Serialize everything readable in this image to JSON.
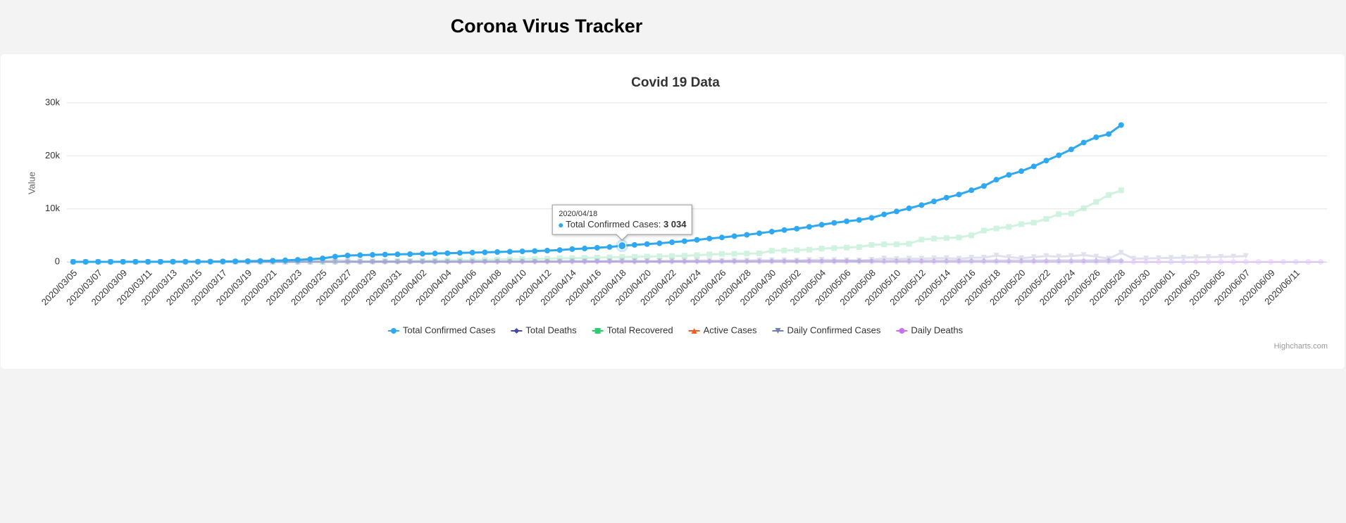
{
  "header": {
    "title": "Corona Virus Tracker"
  },
  "chart_data": {
    "type": "line",
    "title": "Covid 19 Data",
    "y_label": "Value",
    "credits": "Highcharts.com",
    "x": [
      "2020/03/05",
      null,
      "2020/03/07",
      null,
      "2020/03/09",
      null,
      "2020/03/11",
      null,
      "2020/03/13",
      null,
      "2020/03/15",
      null,
      "2020/03/17",
      null,
      "2020/03/19",
      null,
      "2020/03/21",
      null,
      "2020/03/23",
      null,
      "2020/03/25",
      null,
      "2020/03/27",
      null,
      "2020/03/29",
      null,
      "2020/03/31",
      null,
      "2020/04/02",
      null,
      "2020/04/04",
      null,
      "2020/04/06",
      null,
      "2020/04/08",
      null,
      "2020/04/10",
      null,
      "2020/04/12",
      null,
      "2020/04/14",
      null,
      "2020/04/16",
      null,
      "2020/04/18",
      null,
      "2020/04/20",
      null,
      "2020/04/22",
      null,
      "2020/04/24",
      null,
      "2020/04/26",
      null,
      "2020/04/28",
      null,
      "2020/04/30",
      null,
      "2020/05/02",
      null,
      "2020/05/04",
      null,
      "2020/05/06",
      null,
      "2020/05/08",
      null,
      "2020/05/10",
      null,
      "2020/05/12",
      null,
      "2020/05/14",
      null,
      "2020/05/16",
      null,
      "2020/05/18",
      null,
      "2020/05/20",
      null,
      "2020/05/22",
      null,
      "2020/05/24",
      null,
      "2020/05/26",
      null,
      "2020/05/28",
      null,
      "2020/05/30",
      null,
      "2020/06/01",
      null,
      "2020/06/03",
      null,
      "2020/06/05",
      null,
      "2020/06/07",
      null,
      "2020/06/09",
      null,
      "2020/06/11",
      null,
      null
    ],
    "ylim": [
      0,
      30000
    ],
    "yticks": [
      0,
      {
        "value": 10000,
        "label": "10k"
      },
      {
        "value": 20000,
        "label": "20k"
      },
      {
        "value": 30000,
        "label": "30k"
      }
    ],
    "grid": true,
    "legend": "bottom",
    "series": [
      {
        "name": "Total Confirmed Cases",
        "color": "#2ea8f0",
        "marker": "circle",
        "values": [
          2,
          3,
          5,
          8,
          10,
          12,
          15,
          20,
          25,
          30,
          40,
          55,
          75,
          100,
          130,
          170,
          220,
          290,
          380,
          500,
          650,
          1000,
          1200,
          1260,
          1320,
          1380,
          1420,
          1460,
          1520,
          1580,
          1630,
          1690,
          1750,
          1800,
          1860,
          1920,
          1980,
          2040,
          2120,
          2230,
          2400,
          2520,
          2650,
          2800,
          3034,
          3200,
          3350,
          3500,
          3700,
          3900,
          4150,
          4400,
          4600,
          4850,
          5100,
          5400,
          5700,
          6000,
          6250,
          6600,
          7000,
          7350,
          7650,
          7900,
          8300,
          8950,
          9500,
          10100,
          10700,
          11400,
          12100,
          12700,
          13500,
          14300,
          15500,
          16400,
          17100,
          18000,
          19100,
          20100,
          21200,
          22500,
          23500,
          24100,
          25800,
          null,
          null,
          null,
          null,
          null,
          null,
          null,
          null,
          null,
          null,
          null,
          null,
          null,
          null,
          null,
          null
        ]
      },
      {
        "name": "Total Deaths",
        "color": "#434aa8",
        "marker": "diamond",
        "values": [
          0,
          0,
          0,
          0,
          0,
          0,
          0,
          0,
          0,
          0,
          0,
          1,
          1,
          2,
          3,
          4,
          5,
          7,
          9,
          11,
          13,
          15,
          18,
          20,
          23,
          25,
          28,
          30,
          33,
          35,
          38,
          40,
          43,
          46,
          49,
          52,
          55,
          58,
          62,
          66,
          70,
          74,
          78,
          82,
          86,
          90,
          95,
          100,
          105,
          110,
          115,
          120,
          125,
          130,
          135,
          140,
          145,
          150,
          155,
          160,
          165,
          170,
          175,
          180,
          185,
          190,
          195,
          200,
          205,
          210,
          215,
          220,
          225,
          230,
          235,
          240,
          245,
          250,
          255,
          260,
          265,
          270,
          275,
          280,
          285,
          null,
          null,
          null,
          null,
          null,
          null,
          null,
          null,
          null,
          null,
          null,
          null,
          null,
          null,
          null,
          null
        ]
      },
      {
        "name": "Total Recovered",
        "color": "#2ecc71",
        "marker": "square",
        "values": [
          0,
          0,
          0,
          0,
          0,
          0,
          0,
          0,
          0,
          0,
          0,
          0,
          0,
          0,
          0,
          0,
          0,
          0,
          0,
          0,
          10,
          20,
          40,
          60,
          80,
          100,
          130,
          160,
          200,
          240,
          280,
          320,
          360,
          400,
          440,
          480,
          520,
          560,
          600,
          650,
          700,
          750,
          800,
          850,
          900,
          950,
          1000,
          1050,
          1100,
          1150,
          1250,
          1400,
          1500,
          1500,
          1550,
          1600,
          2100,
          2150,
          2200,
          2300,
          2500,
          2600,
          2700,
          2800,
          3200,
          3300,
          3300,
          3400,
          4200,
          4400,
          4500,
          4600,
          5000,
          5900,
          6300,
          6600,
          7100,
          7400,
          8100,
          9000,
          9100,
          10100,
          11300,
          12600,
          13500,
          null,
          null,
          null,
          null,
          null,
          null,
          null,
          null,
          null,
          null,
          null,
          null,
          null,
          null,
          null,
          null
        ]
      },
      {
        "name": "Active Cases",
        "color": "#f15c22",
        "marker": "triangle",
        "values": [
          null,
          null,
          null,
          null,
          null,
          null,
          null,
          null,
          null,
          null,
          null,
          null,
          null,
          null,
          null,
          null,
          null,
          null,
          null,
          null,
          null,
          null,
          null,
          null,
          null,
          null,
          null,
          null,
          null,
          null,
          null,
          null,
          null,
          null,
          null,
          null,
          null,
          null,
          null,
          null,
          null,
          null,
          null,
          null,
          null,
          null,
          null,
          null,
          null,
          null,
          null,
          null,
          null,
          null,
          null,
          null,
          null,
          null,
          null,
          null,
          null,
          null,
          null,
          null,
          null,
          null,
          null,
          null,
          null,
          null,
          null,
          null,
          null,
          null,
          null,
          null,
          null,
          null,
          null,
          null,
          null,
          null,
          null,
          null,
          null,
          null,
          null,
          null,
          null,
          null,
          null,
          null,
          null,
          null,
          null,
          null,
          null,
          null,
          null,
          null,
          null
        ]
      },
      {
        "name": "Daily Confirmed Cases",
        "color": "#7080b0",
        "marker": "triangle-down",
        "values": [
          1,
          1,
          2,
          3,
          2,
          2,
          3,
          5,
          5,
          5,
          10,
          15,
          20,
          25,
          30,
          40,
          50,
          70,
          90,
          120,
          150,
          350,
          200,
          60,
          60,
          60,
          40,
          40,
          60,
          60,
          50,
          60,
          60,
          50,
          60,
          60,
          60,
          60,
          80,
          110,
          170,
          120,
          130,
          150,
          234,
          166,
          150,
          150,
          200,
          200,
          250,
          250,
          200,
          250,
          250,
          300,
          300,
          300,
          250,
          350,
          400,
          350,
          300,
          250,
          400,
          650,
          550,
          600,
          600,
          700,
          700,
          600,
          800,
          800,
          1200,
          900,
          700,
          900,
          1100,
          1000,
          1100,
          1300,
          1000,
          600,
          1700,
          600,
          650,
          700,
          750,
          800,
          850,
          900,
          950,
          1000,
          1100,
          null,
          null,
          null,
          null,
          null,
          null
        ]
      },
      {
        "name": "Daily Deaths",
        "color": "#c970f0",
        "marker": "circle",
        "values": [
          0,
          0,
          0,
          0,
          0,
          0,
          0,
          0,
          0,
          0,
          0,
          0,
          1,
          0,
          1,
          1,
          1,
          2,
          2,
          2,
          2,
          2,
          3,
          2,
          3,
          2,
          3,
          2,
          3,
          2,
          3,
          3,
          3,
          3,
          3,
          3,
          3,
          4,
          4,
          4,
          4,
          4,
          4,
          4,
          4,
          4,
          5,
          5,
          5,
          5,
          5,
          5,
          5,
          5,
          5,
          5,
          5,
          5,
          5,
          5,
          5,
          5,
          5,
          5,
          5,
          5,
          5,
          5,
          5,
          5,
          5,
          5,
          5,
          5,
          5,
          5,
          5,
          5,
          5,
          5,
          5,
          5,
          5,
          5,
          5,
          5,
          5,
          5,
          5,
          5,
          5,
          5,
          5,
          5,
          5,
          0,
          0,
          0,
          0,
          0,
          0
        ]
      }
    ],
    "tooltip": {
      "x": "2020/04/18",
      "series_name": "Total Confirmed Cases",
      "value_label": "3 034"
    }
  }
}
